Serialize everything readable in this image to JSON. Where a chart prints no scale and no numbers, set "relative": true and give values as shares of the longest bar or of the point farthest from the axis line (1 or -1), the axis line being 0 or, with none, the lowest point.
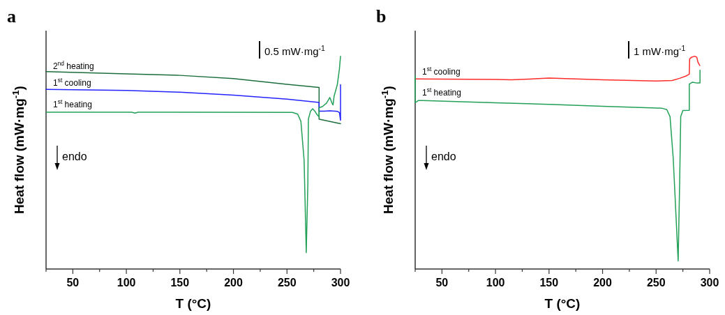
{
  "chart_data": [
    {
      "type": "line",
      "title": "a",
      "xlabel": "T (°C)",
      "ylabel": "Heat flow (mW·mg$^{-1}$)",
      "relative": true,
      "xlim": [
        25,
        300
      ],
      "xticks": [
        {
          "value": 25,
          "label": null
        },
        50,
        {
          "value": 75,
          "label": null
        },
        100,
        {
          "value": 125,
          "label": null
        },
        150,
        {
          "value": 175,
          "label": null
        },
        200,
        {
          "value": 225,
          "label": null
        },
        250,
        {
          "value": 275,
          "label": null
        },
        300
      ],
      "annotations": [
        "0.5 mW·mg$^{-1}$",
        "endo"
      ],
      "series": [
        {
          "name": "2$^{nd}$ heating",
          "color": "#1b6e3b",
          "x": [
            25,
            100,
            150,
            200,
            250,
            280,
            280,
            300
          ],
          "values": [
            0.928,
            0.917,
            0.91,
            0.895,
            0.868,
            0.853,
            0.704,
            0.683
          ]
        },
        {
          "name": "1$^{st}$ cooling",
          "color": "#2323ff",
          "x": [
            25,
            100,
            150,
            200,
            250,
            280,
            280,
            281,
            285,
            290,
            297,
            299,
            300,
            300
          ],
          "values": [
            0.844,
            0.839,
            0.831,
            0.817,
            0.798,
            0.783,
            0.742,
            0.742,
            0.742,
            0.743,
            0.741,
            0.735,
            0.699,
            0.866
          ]
        },
        {
          "name": "1$^{st}$ heating",
          "color": "#23a057",
          "x": [
            25,
            105,
            108,
            111,
            255,
            260,
            263,
            266,
            268,
            269.5,
            270,
            272,
            274,
            276,
            278,
            280,
            280,
            283,
            287,
            290,
            292,
            293,
            294,
            297,
            299,
            300
          ],
          "values": [
            0.737,
            0.737,
            0.733,
            0.737,
            0.736,
            0.728,
            0.694,
            0.511,
            0.077,
            0.403,
            0.704,
            0.742,
            0.753,
            0.742,
            0.726,
            0.715,
            0.758,
            0.763,
            0.78,
            0.806,
            0.78,
            0.771,
            0.812,
            0.866,
            0.941,
            1.0
          ]
        }
      ]
    },
    {
      "type": "line",
      "title": "b",
      "xlabel": "T (°C)",
      "ylabel": "Heat flow (mW·mg$^{-1}$)",
      "relative": true,
      "xlim": [
        25,
        300
      ],
      "xticks": [
        {
          "value": 25,
          "label": null
        },
        50,
        {
          "value": 75,
          "label": null
        },
        100,
        {
          "value": 125,
          "label": null
        },
        150,
        {
          "value": 175,
          "label": null
        },
        200,
        {
          "value": 225,
          "label": null
        },
        250,
        {
          "value": 275,
          "label": null
        },
        300
      ],
      "annotations": [
        "1 mW·mg$^{-1}$",
        "endo"
      ],
      "series": [
        {
          "name": "1$^{st}$ cooling",
          "color": "#ff2a2a",
          "x": [
            25,
            100,
            115,
            150,
            200,
            250,
            265,
            272,
            278,
            281,
            281.3,
            283,
            286,
            288,
            289,
            290.8
          ],
          "values": [
            0.893,
            0.891,
            0.889,
            0.897,
            0.889,
            0.883,
            0.886,
            0.896,
            0.907,
            0.916,
            0.987,
            0.995,
            1.0,
            0.995,
            0.973,
            0.956
          ]
        },
        {
          "name": "1$^{st}$ heating",
          "color": "#23a057",
          "x": [
            25,
            25,
            28,
            32,
            100,
            150,
            200,
            230,
            255,
            260,
            263,
            266,
            270.6,
            272,
            273,
            275,
            281,
            281,
            284,
            288,
            291,
            291
          ],
          "values": [
            0.907,
            0.781,
            0.792,
            0.792,
            0.781,
            0.774,
            0.765,
            0.76,
            0.756,
            0.749,
            0.716,
            0.519,
            0.038,
            0.41,
            0.716,
            0.745,
            0.746,
            0.869,
            0.878,
            0.874,
            0.874,
            0.934
          ]
        }
      ]
    }
  ]
}
